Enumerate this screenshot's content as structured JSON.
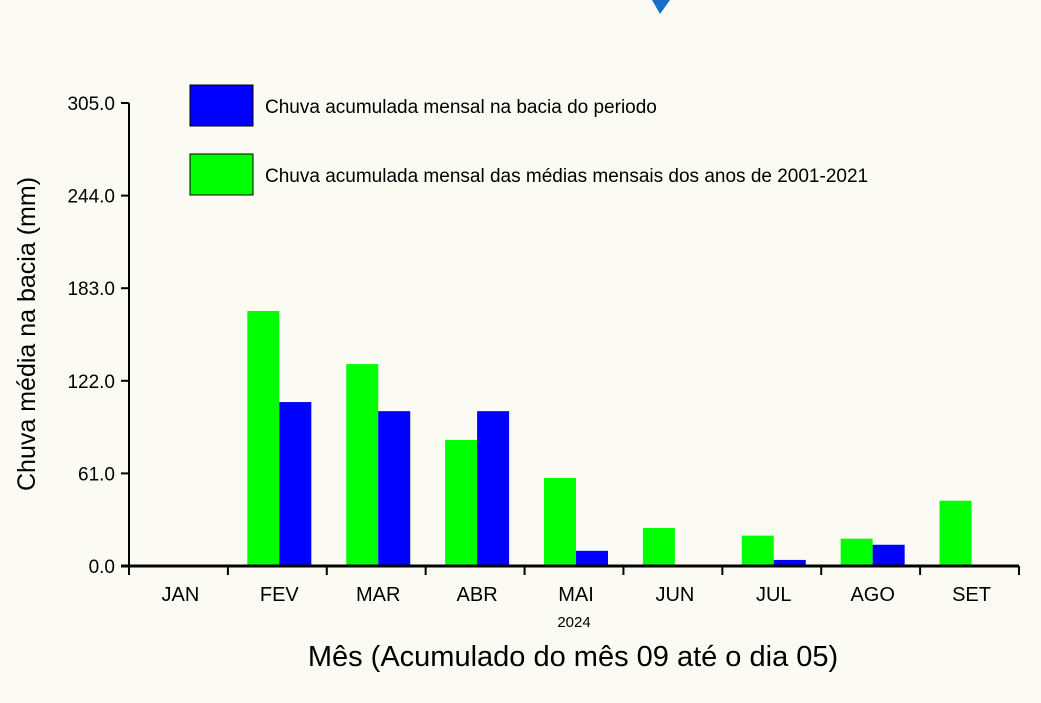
{
  "chart_data": {
    "type": "bar",
    "title": "",
    "xlabel": "Mês (Acumulado do mês 09 até o dia 05)",
    "xsublabel": "2024",
    "ylabel": "Chuva média na bacia (mm)",
    "ylim": [
      0,
      305
    ],
    "yticks": [
      "0.0",
      "61.0",
      "122.0",
      "183.0",
      "244.0",
      "305.0"
    ],
    "categories": [
      "JAN",
      "FEV",
      "MAR",
      "ABR",
      "MAI",
      "JUN",
      "JUL",
      "AGO",
      "SET"
    ],
    "series": [
      {
        "name": "Chuva acumulada mensal das médias mensais dos anos de 2001-2021",
        "color": "#00ff00",
        "values": [
          0,
          168,
          133,
          83,
          58,
          25,
          20,
          18,
          43
        ]
      },
      {
        "name": "Chuva acumulada mensal na bacia do periodo",
        "color": "#0000ff",
        "values": [
          0,
          108,
          102,
          102,
          10,
          0,
          4,
          14,
          0
        ]
      }
    ],
    "legend": {
      "position": "top",
      "order": [
        1,
        0
      ]
    },
    "grid": false
  },
  "decoration": {
    "accent_color": "#1a6fc4",
    "icon": "chevron-icon"
  }
}
